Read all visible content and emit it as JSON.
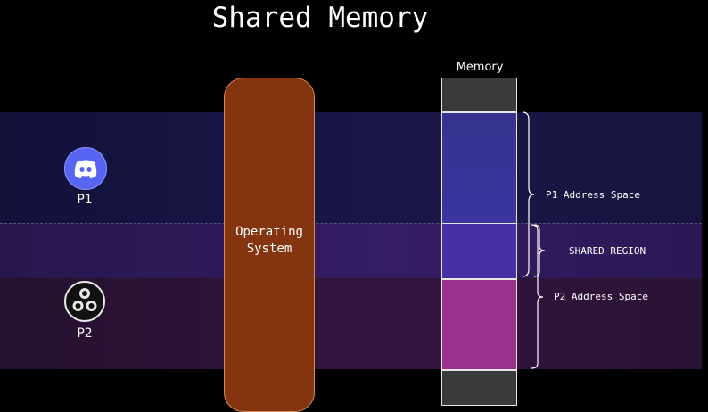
{
  "title": "Shared Memory",
  "operating_system": {
    "label": "Operating\nSystem"
  },
  "memory": {
    "label": "Memory"
  },
  "processes": [
    {
      "label": "P1",
      "icon": "discord-icon",
      "icon_color": "#5865F2"
    },
    {
      "label": "P2",
      "icon": "obs-icon",
      "icon_color": "#000000"
    }
  ],
  "regions": {
    "p1_address_space": "P1 Address Space",
    "shared_region": "SHARED REGION",
    "p2_address_space": "P2 Address Space"
  },
  "colors": {
    "os_fill": "#843510",
    "p1_segment": "#3a35a0",
    "shared_segment": "#4630a4",
    "p2_segment": "#99318f",
    "unused_segment": "#3a3a3a"
  }
}
